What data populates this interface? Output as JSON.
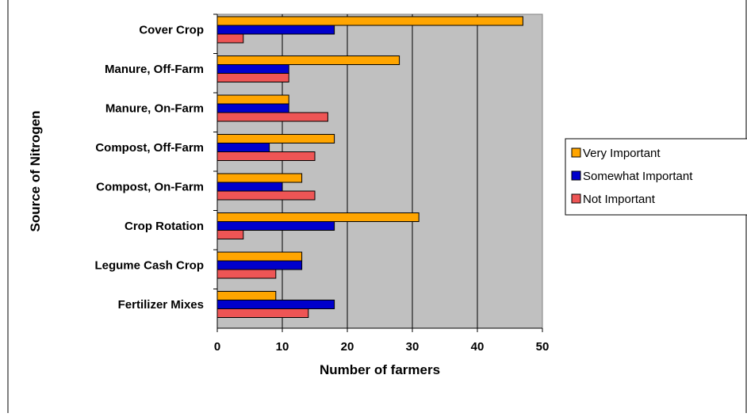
{
  "chart_data": {
    "type": "bar",
    "orientation": "horizontal",
    "title": "",
    "xlabel": "Number of farmers",
    "ylabel": "Source of Nitrogen",
    "categories": [
      "Cover Crop",
      "Manure, Off-Farm",
      "Manure, On-Farm",
      "Compost, Off-Farm",
      "Compost, On-Farm",
      "Crop Rotation",
      "Legume Cash Crop",
      "Fertilizer Mixes"
    ],
    "series": [
      {
        "name": "Very Important",
        "color": "#FFA500",
        "values": [
          47,
          28,
          11,
          18,
          13,
          31,
          13,
          9
        ]
      },
      {
        "name": "Somewhat Important",
        "color": "#0000CC",
        "values": [
          18,
          11,
          11,
          8,
          10,
          18,
          13,
          18
        ]
      },
      {
        "name": "Not Important",
        "color": "#EE5555",
        "values": [
          4,
          11,
          17,
          15,
          15,
          4,
          9,
          14
        ]
      }
    ],
    "xlim": [
      0,
      50
    ],
    "xticks": [
      "0",
      "10",
      "20",
      "30",
      "40",
      "50"
    ],
    "grid": "vertical",
    "plot_background": "#C0C0C0",
    "legend_position": "right"
  }
}
